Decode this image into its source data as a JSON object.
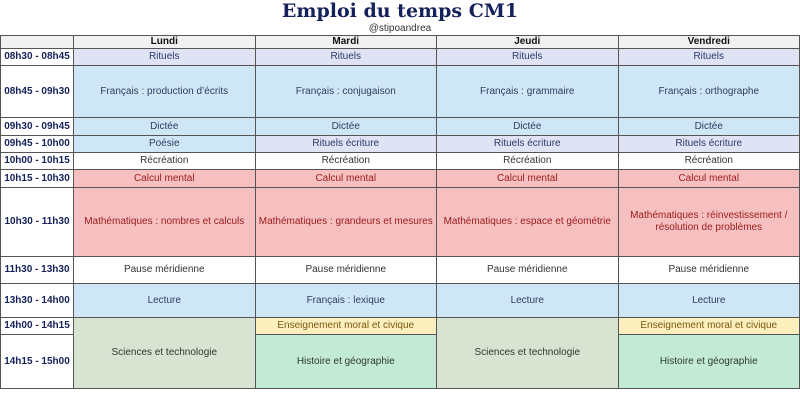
{
  "header": {
    "title": "Emploi du temps CM1",
    "subtitle": "@stipoandrea"
  },
  "days": [
    "Lundi",
    "Mardi",
    "Jeudi",
    "Vendredi"
  ],
  "colors": {
    "rituels": {
      "bg": "#dfe3f3",
      "fg": "#2b3a6b"
    },
    "francais": {
      "bg": "#cfe6f6",
      "fg": "#2b3f5f"
    },
    "recre": {
      "bg": "#ffffff",
      "fg": "#333333"
    },
    "maths": {
      "bg": "#f7c0c0",
      "fg": "#9a1b1b"
    },
    "sciences": {
      "bg": "#d8e3d2",
      "fg": "#2d3b2d"
    },
    "emc": {
      "bg": "#fcefbe",
      "fg": "#7a5a10"
    },
    "histoire": {
      "bg": "#c3ead7",
      "fg": "#2d3b2d"
    }
  },
  "rows": [
    {
      "time": "08h30 - 08h45",
      "cells": [
        {
          "text": "Rituels",
          "c": "rituels"
        },
        {
          "text": "Rituels",
          "c": "rituels"
        },
        {
          "text": "Rituels",
          "c": "rituels"
        },
        {
          "text": "Rituels",
          "c": "rituels"
        }
      ]
    },
    {
      "time": "08h45 - 09h30",
      "cells": [
        {
          "text": "Français : production d’écrits",
          "c": "francais"
        },
        {
          "text": "Français : conjugaison",
          "c": "francais"
        },
        {
          "text": "Français : grammaire",
          "c": "francais"
        },
        {
          "text": "Français : orthographe",
          "c": "francais"
        }
      ]
    },
    {
      "time": "09h30 - 09h45",
      "cells": [
        {
          "text": "Dictée",
          "c": "francais"
        },
        {
          "text": "Dictée",
          "c": "francais"
        },
        {
          "text": "Dictée",
          "c": "francais"
        },
        {
          "text": "Dictée",
          "c": "francais"
        }
      ]
    },
    {
      "time": "09h45 - 10h00",
      "cells": [
        {
          "text": "Poésie",
          "c": "francais"
        },
        {
          "text": "Rituels écriture",
          "c": "rituels"
        },
        {
          "text": "Rituels écriture",
          "c": "rituels"
        },
        {
          "text": "Rituels écriture",
          "c": "rituels"
        }
      ]
    },
    {
      "time": "10h00 - 10h15",
      "cells": [
        {
          "text": "Récréation",
          "c": "recre"
        },
        {
          "text": "Récréation",
          "c": "recre"
        },
        {
          "text": "Récréation",
          "c": "recre"
        },
        {
          "text": "Récréation",
          "c": "recre"
        }
      ]
    },
    {
      "time": "10h15 - 10h30",
      "cells": [
        {
          "text": "Calcul mental",
          "c": "maths"
        },
        {
          "text": "Calcul mental",
          "c": "maths"
        },
        {
          "text": "Calcul mental",
          "c": "maths"
        },
        {
          "text": "Calcul mental",
          "c": "maths"
        }
      ]
    },
    {
      "time": "10h30 - 11h30",
      "cells": [
        {
          "text": "Mathématiques : nombres et calculs",
          "c": "maths"
        },
        {
          "text": "Mathématiques : grandeurs et mesures",
          "c": "maths"
        },
        {
          "text": "Mathématiques : espace et géométrie",
          "c": "maths"
        },
        {
          "text": "Mathématiques : réinvestissement / résolution de problèmes",
          "c": "maths"
        }
      ]
    },
    {
      "time": "11h30 - 13h30",
      "cells": [
        {
          "text": "Pause méridienne",
          "c": "recre"
        },
        {
          "text": "Pause méridienne",
          "c": "recre"
        },
        {
          "text": "Pause méridienne",
          "c": "recre"
        },
        {
          "text": "Pause méridienne",
          "c": "recre"
        }
      ]
    },
    {
      "time": "13h30 - 14h00",
      "cells": [
        {
          "text": "Lecture",
          "c": "francais"
        },
        {
          "text": "Français : lexique",
          "c": "francais"
        },
        {
          "text": "Lecture",
          "c": "francais"
        },
        {
          "text": "Lecture",
          "c": "francais"
        }
      ]
    },
    {
      "time": "14h00 - 14h15",
      "cells": [
        {
          "text": "Sciences et technologie",
          "c": "sciences",
          "rowspan": 2
        },
        {
          "text": "Enseignement moral et civique",
          "c": "emc"
        },
        {
          "text": "Sciences et technologie",
          "c": "sciences",
          "rowspan": 2
        },
        {
          "text": "Enseignement moral et civique",
          "c": "emc"
        }
      ]
    },
    {
      "time": "14h15 - 15h00",
      "cells": [
        null,
        {
          "text": "Histoire et géographie",
          "c": "histoire"
        },
        null,
        {
          "text": "Histoire et géographie",
          "c": "histoire"
        }
      ]
    }
  ]
}
